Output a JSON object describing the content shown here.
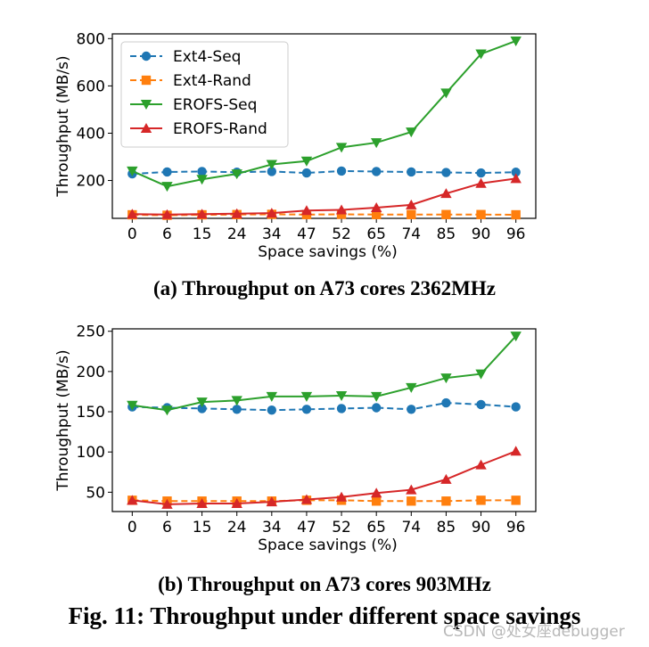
{
  "figure_caption": "Fig. 11: Throughput under different space savings",
  "watermark": "CSDN @处女座debugger",
  "chart_data": [
    {
      "type": "line",
      "caption": "(a) Throughput on A73 cores 2362MHz",
      "xlabel": "Space savings (%)",
      "ylabel": "Throughput (MB/s)",
      "categories": [
        "0",
        "6",
        "15",
        "24",
        "34",
        "47",
        "52",
        "65",
        "74",
        "85",
        "90",
        "96"
      ],
      "ylim": [
        40,
        820
      ],
      "yticks": [
        200,
        400,
        600,
        800
      ],
      "legend_position": "upper-left",
      "series": [
        {
          "name": "Ext4-Seq",
          "color": "#1f77b4",
          "marker": "circle",
          "dash": "dashed",
          "values": [
            228,
            236,
            238,
            235,
            238,
            232,
            240,
            238,
            236,
            234,
            232,
            235
          ]
        },
        {
          "name": "Ext4-Rand",
          "color": "#ff7f0e",
          "marker": "square",
          "dash": "dashed",
          "values": [
            55,
            53,
            55,
            56,
            57,
            56,
            57,
            56,
            56,
            56,
            56,
            55
          ]
        },
        {
          "name": "EROFS-Seq",
          "color": "#2ca02c",
          "marker": "triangle-down",
          "dash": "solid",
          "values": [
            240,
            175,
            205,
            228,
            268,
            282,
            340,
            360,
            405,
            570,
            735,
            790
          ]
        },
        {
          "name": "EROFS-Rand",
          "color": "#d62728",
          "marker": "triangle-up",
          "dash": "solid",
          "values": [
            58,
            56,
            58,
            60,
            62,
            73,
            76,
            85,
            97,
            145,
            188,
            208
          ]
        }
      ]
    },
    {
      "type": "line",
      "caption": "(b) Throughput on A73 cores 903MHz",
      "xlabel": "Space savings (%)",
      "ylabel": "Throughput (MB/s)",
      "categories": [
        "0",
        "6",
        "15",
        "24",
        "34",
        "47",
        "52",
        "65",
        "74",
        "85",
        "90",
        "96"
      ],
      "ylim": [
        26,
        253
      ],
      "yticks": [
        50,
        100,
        150,
        200,
        250
      ],
      "series": [
        {
          "name": "Ext4-Seq",
          "color": "#1f77b4",
          "marker": "circle",
          "dash": "dashed",
          "values": [
            156,
            155,
            154,
            153,
            152,
            153,
            154,
            155,
            153,
            161,
            159,
            156
          ]
        },
        {
          "name": "Ext4-Rand",
          "color": "#ff7f0e",
          "marker": "square",
          "dash": "dashed",
          "values": [
            40,
            39,
            39,
            39,
            39,
            40,
            40,
            39,
            39,
            39,
            40,
            40
          ]
        },
        {
          "name": "EROFS-Seq",
          "color": "#2ca02c",
          "marker": "triangle-down",
          "dash": "solid",
          "values": [
            158,
            152,
            162,
            164,
            169,
            169,
            170,
            169,
            180,
            192,
            197,
            244
          ]
        },
        {
          "name": "EROFS-Rand",
          "color": "#d62728",
          "marker": "triangle-up",
          "dash": "solid",
          "values": [
            40,
            35,
            36,
            36,
            38,
            41,
            44,
            49,
            53,
            66,
            84,
            101
          ]
        }
      ]
    }
  ]
}
